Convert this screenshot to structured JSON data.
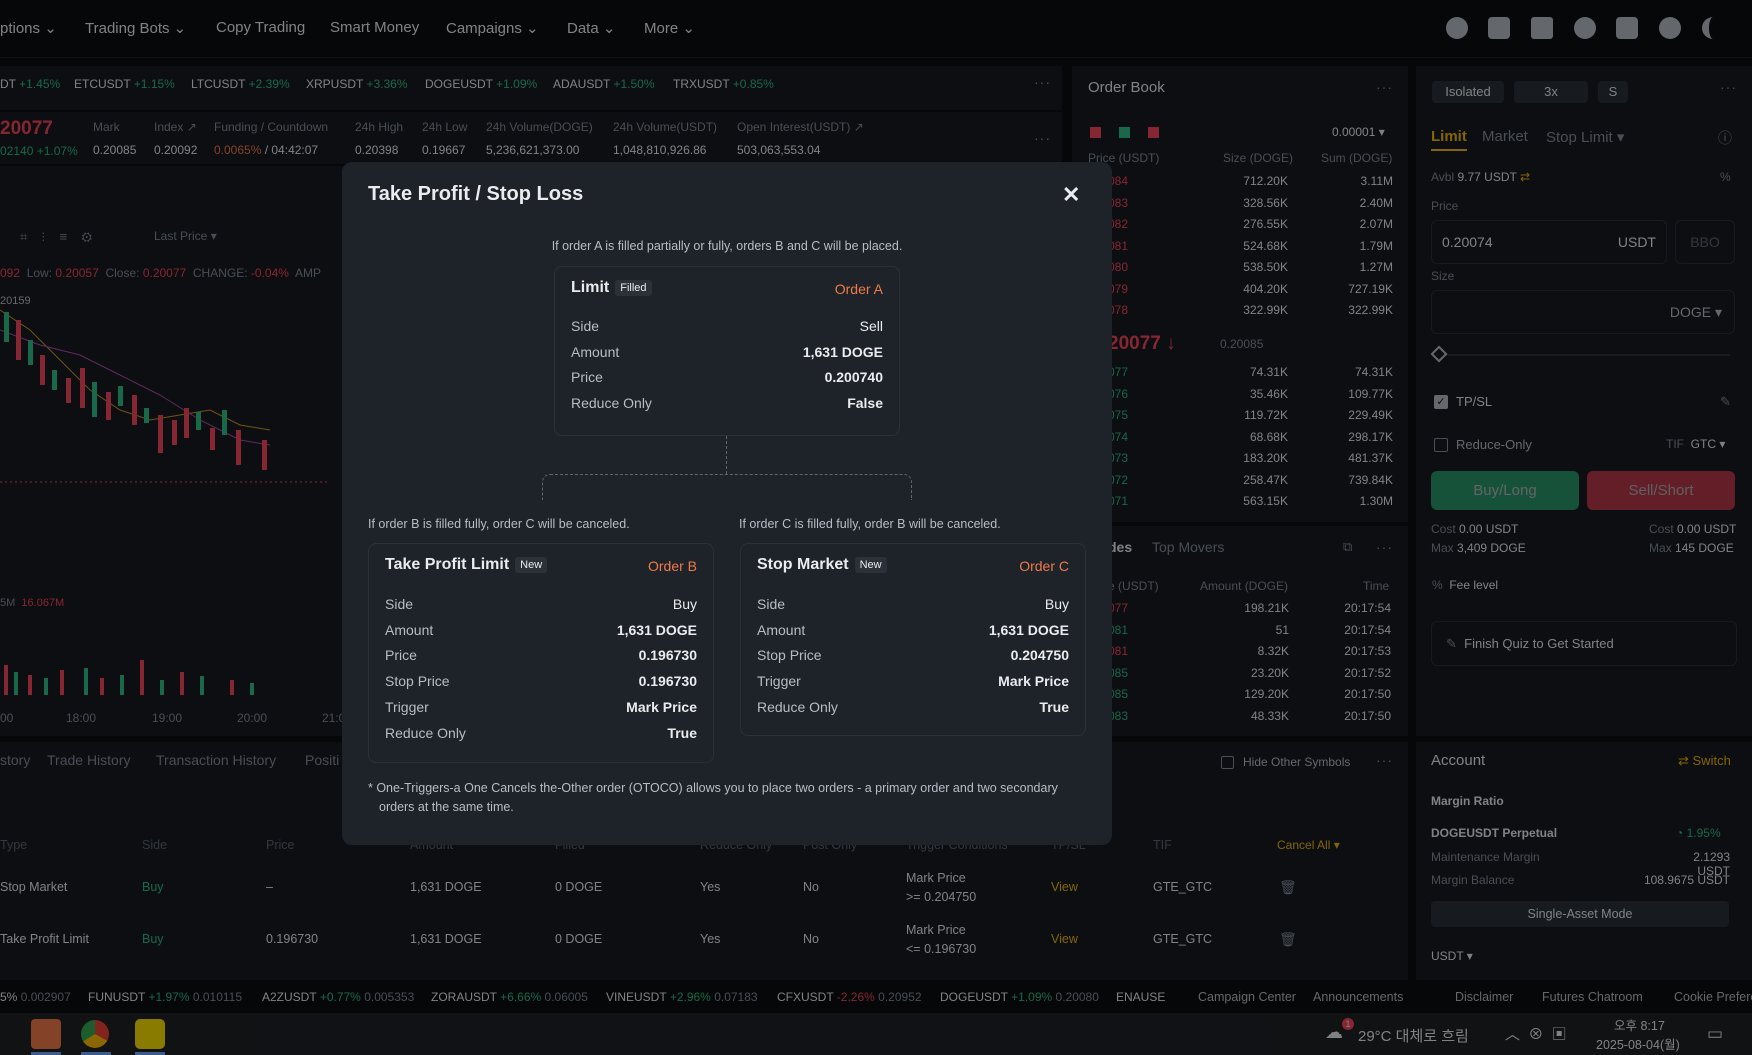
{
  "nav": {
    "items": [
      "ptions",
      "Trading Bots",
      "Copy Trading",
      "Smart Money",
      "Campaigns",
      "Data",
      "More"
    ],
    "icons": [
      "user-icon",
      "wallet-icon",
      "orders-icon",
      "globe-icon",
      "help-icon",
      "gear-icon",
      "moon-icon"
    ]
  },
  "ticker": [
    {
      "sym": "DT",
      "chg": "+1.45%"
    },
    {
      "sym": "ETCUSDT",
      "chg": "+1.15%"
    },
    {
      "sym": "LTCUSDT",
      "chg": "+2.39%"
    },
    {
      "sym": "XRPUSDT",
      "chg": "+3.36%"
    },
    {
      "sym": "DOGEUSDT",
      "chg": "+1.09%"
    },
    {
      "sym": "ADAUSDT",
      "chg": "+1.50%"
    },
    {
      "sym": "TRXUSDT",
      "chg": "+0.85%"
    }
  ],
  "stats": {
    "last_price": "20077",
    "last_sub": "02140",
    "last_sub_chg": "+1.07%",
    "mark_label": "Mark",
    "mark": "0.20085",
    "index_label": "Index ↗",
    "index": "0.20092",
    "funding_label": "Funding / Countdown",
    "funding_rate": "0.0065%",
    "funding_countdown": "/ 04:42:07",
    "high_label": "24h High",
    "high": "0.20398",
    "low_label": "24h Low",
    "low": "0.19667",
    "vol_doge_label": "24h Volume(DOGE)",
    "vol_doge": "5,236,621,373.00",
    "vol_usdt_label": "24h Volume(USDT)",
    "vol_usdt": "1,048,810,926.86",
    "oi_label": "Open Interest(USDT) ↗",
    "oi": "503,063,553.04"
  },
  "chart": {
    "toolbar_price": "Last Price",
    "ohlc": {
      "o_val": "092",
      "low_label": "Low:",
      "low": "0.20057",
      "close_label": "Close:",
      "close": "0.20077",
      "change_label": "CHANGE:",
      "change": "-0.04%",
      "amp": "AMP"
    },
    "price_marker": "20159",
    "vol_label": "5M",
    "vol_val": "16.067M",
    "times": [
      "00",
      "18:00",
      "19:00",
      "20:00",
      "21:0"
    ]
  },
  "orderbook": {
    "title": "Order Book",
    "precision": "0.00001",
    "headers": [
      "Price (USDT)",
      "Size (DOGE)",
      "Sum (DOGE)"
    ],
    "asks": [
      {
        "p": "084",
        "s": "712.20K",
        "sum": "3.11M"
      },
      {
        "p": "083",
        "s": "328.56K",
        "sum": "2.40M"
      },
      {
        "p": "082",
        "s": "276.55K",
        "sum": "2.07M"
      },
      {
        "p": "081",
        "s": "524.68K",
        "sum": "1.79M"
      },
      {
        "p": "080",
        "s": "538.50K",
        "sum": "1.27M"
      },
      {
        "p": "079",
        "s": "404.20K",
        "sum": "727.19K"
      },
      {
        "p": "078",
        "s": "322.99K",
        "sum": "322.99K"
      }
    ],
    "mid_price": "20077",
    "mid_mark": "0.20085",
    "bids": [
      {
        "p": "077",
        "s": "74.31K",
        "sum": "74.31K"
      },
      {
        "p": "076",
        "s": "35.46K",
        "sum": "109.77K"
      },
      {
        "p": "075",
        "s": "119.72K",
        "sum": "229.49K"
      },
      {
        "p": "074",
        "s": "68.68K",
        "sum": "298.17K"
      },
      {
        "p": "073",
        "s": "183.20K",
        "sum": "481.37K"
      },
      {
        "p": "072",
        "s": "258.47K",
        "sum": "739.84K"
      },
      {
        "p": "071",
        "s": "563.15K",
        "sum": "1.30M"
      }
    ]
  },
  "trades": {
    "tabs": [
      "des",
      "Top Movers"
    ],
    "headers": [
      "e (USDT)",
      "Amount (DOGE)",
      "Time"
    ],
    "rows": [
      {
        "p": "077",
        "a": "198.21K",
        "t": "20:17:54",
        "side": "r"
      },
      {
        "p": "081",
        "a": "51",
        "t": "20:17:54",
        "side": "g"
      },
      {
        "p": "081",
        "a": "8.32K",
        "t": "20:17:53",
        "side": "r"
      },
      {
        "p": "085",
        "a": "23.20K",
        "t": "20:17:52",
        "side": "g"
      },
      {
        "p": "085",
        "a": "129.20K",
        "t": "20:17:50",
        "side": "g"
      },
      {
        "p": "083",
        "a": "48.33K",
        "t": "20:17:50",
        "side": "g"
      }
    ]
  },
  "order_form": {
    "margin_mode": "Isolated",
    "leverage": "3x",
    "mode": "S",
    "tabs": [
      "Limit",
      "Market",
      "Stop Limit"
    ],
    "avbl_label": "Avbl",
    "avbl": "9.77 USDT",
    "price_label": "Price",
    "price_value": "0.20074",
    "price_unit": "USDT",
    "bbo": "BBO",
    "size_label": "Size",
    "size_unit": "DOGE",
    "tpsl": "TP/SL",
    "reduce_only": "Reduce-Only",
    "tif_label": "TIF",
    "tif": "GTC",
    "buy": "Buy/Long",
    "sell": "Sell/Short",
    "cost_label": "Cost",
    "cost_buy": "0.00 USDT",
    "cost_sell": "0.00 USDT",
    "max_label": "Max",
    "max_buy": "3,409 DOGE",
    "max_sell": "145 DOGE",
    "fee_level": "Fee level",
    "quiz": "Finish Quiz to Get Started"
  },
  "account": {
    "title": "Account",
    "switch": "Switch",
    "margin_ratio": "Margin Ratio",
    "symbol": "DOGEUSDT Perpetual",
    "ratio": "1.95%",
    "maint_label": "Maintenance Margin",
    "maint": "2.1293 USDT",
    "bal_label": "Margin Balance",
    "bal": "108.9675 USDT",
    "single_asset": "Single-Asset Mode",
    "currency": "USDT"
  },
  "bottom": {
    "tabs": [
      "story",
      "Trade History",
      "Transaction History",
      "Positi"
    ],
    "hide_other": "Hide Other Symbols",
    "headers": [
      "Type",
      "Side",
      "Price",
      "Amount",
      "Filled",
      "Reduce Only",
      "Post Only",
      "Trigger Conditions",
      "TP/SL",
      "TIF"
    ],
    "cancel_all": "Cancel All",
    "rows": [
      {
        "type": "Stop Market",
        "side": "Buy",
        "price": "–",
        "amount": "1,631 DOGE",
        "filled": "0 DOGE",
        "reduce": "Yes",
        "post": "No",
        "trig1": "Mark Price",
        "trig2": ">= 0.204750",
        "tpsl": "View",
        "tif": "GTE_GTC"
      },
      {
        "type": "Take Profit Limit",
        "side": "Buy",
        "price": "0.196730",
        "amount": "1,631 DOGE",
        "filled": "0 DOGE",
        "reduce": "Yes",
        "post": "No",
        "trig1": "Mark Price",
        "trig2": "<= 0.196730",
        "tpsl": "View",
        "tif": "GTE_GTC"
      }
    ]
  },
  "footer_ticker": [
    {
      "sym": "5%",
      "chg": "",
      "p": "0.002907"
    },
    {
      "sym": "FUNUSDT",
      "chg": "+1.97%",
      "p": "0.010115"
    },
    {
      "sym": "A2ZUSDT",
      "chg": "+0.77%",
      "p": "0.005353"
    },
    {
      "sym": "ZORAUSDT",
      "chg": "+6.66%",
      "p": "0.06005"
    },
    {
      "sym": "VINEUSDT",
      "chg": "+2.96%",
      "p": "0.07183"
    },
    {
      "sym": "CFXUSDT",
      "chg": "-2.26%",
      "p": "0.20952"
    },
    {
      "sym": "DOGEUSDT",
      "chg": "+1.09%",
      "p": "0.20080"
    },
    {
      "sym": "ENAUSE",
      "chg": "",
      "p": ""
    }
  ],
  "footer_links": [
    "Campaign Center",
    "Announcements",
    "Disclaimer",
    "Futures Chatroom",
    "Cookie Preferences"
  ],
  "modal": {
    "title": "Take Profit / Stop Loss",
    "intro": "If order A is filled partially or fully, orders B and C will be placed.",
    "a": {
      "title": "Limit",
      "badge": "Filled",
      "order": "Order A",
      "rows": [
        {
          "k": "Side",
          "v": "Sell"
        },
        {
          "k": "Amount",
          "v": "1,631 DOGE"
        },
        {
          "k": "Price",
          "v": "0.200740"
        },
        {
          "k": "Reduce Only",
          "v": "False"
        }
      ]
    },
    "b_note": "If order B is filled fully, order C will be canceled.",
    "c_note": "If order C is filled fully, order B will be canceled.",
    "b": {
      "title": "Take Profit Limit",
      "badge": "New",
      "order": "Order B",
      "rows": [
        {
          "k": "Side",
          "v": "Buy"
        },
        {
          "k": "Amount",
          "v": "1,631 DOGE"
        },
        {
          "k": "Price",
          "v": "0.196730"
        },
        {
          "k": "Stop Price",
          "v": "0.196730"
        },
        {
          "k": "Trigger",
          "v": "Mark Price"
        },
        {
          "k": "Reduce Only",
          "v": "True"
        }
      ]
    },
    "c": {
      "title": "Stop Market",
      "badge": "New",
      "order": "Order C",
      "rows": [
        {
          "k": "Side",
          "v": "Buy"
        },
        {
          "k": "Amount",
          "v": "1,631 DOGE"
        },
        {
          "k": "Stop Price",
          "v": "0.204750"
        },
        {
          "k": "Trigger",
          "v": "Mark Price"
        },
        {
          "k": "Reduce Only",
          "v": "True"
        }
      ]
    },
    "footnote1": "* One-Triggers-a One Cancels the-Other order (OTOCO) allows you to place two orders - a primary order and two secondary",
    "footnote2": "orders at the same time."
  },
  "taskbar": {
    "weather": "29°C 대체로 흐림",
    "time": "오후 8:17",
    "date": "2025-08-04(월)",
    "badge": "1"
  },
  "colors": {
    "buy": "#2ebd85",
    "sell": "#f6465d",
    "accent": "#f0b90b",
    "order_tag": "#f0794a"
  }
}
